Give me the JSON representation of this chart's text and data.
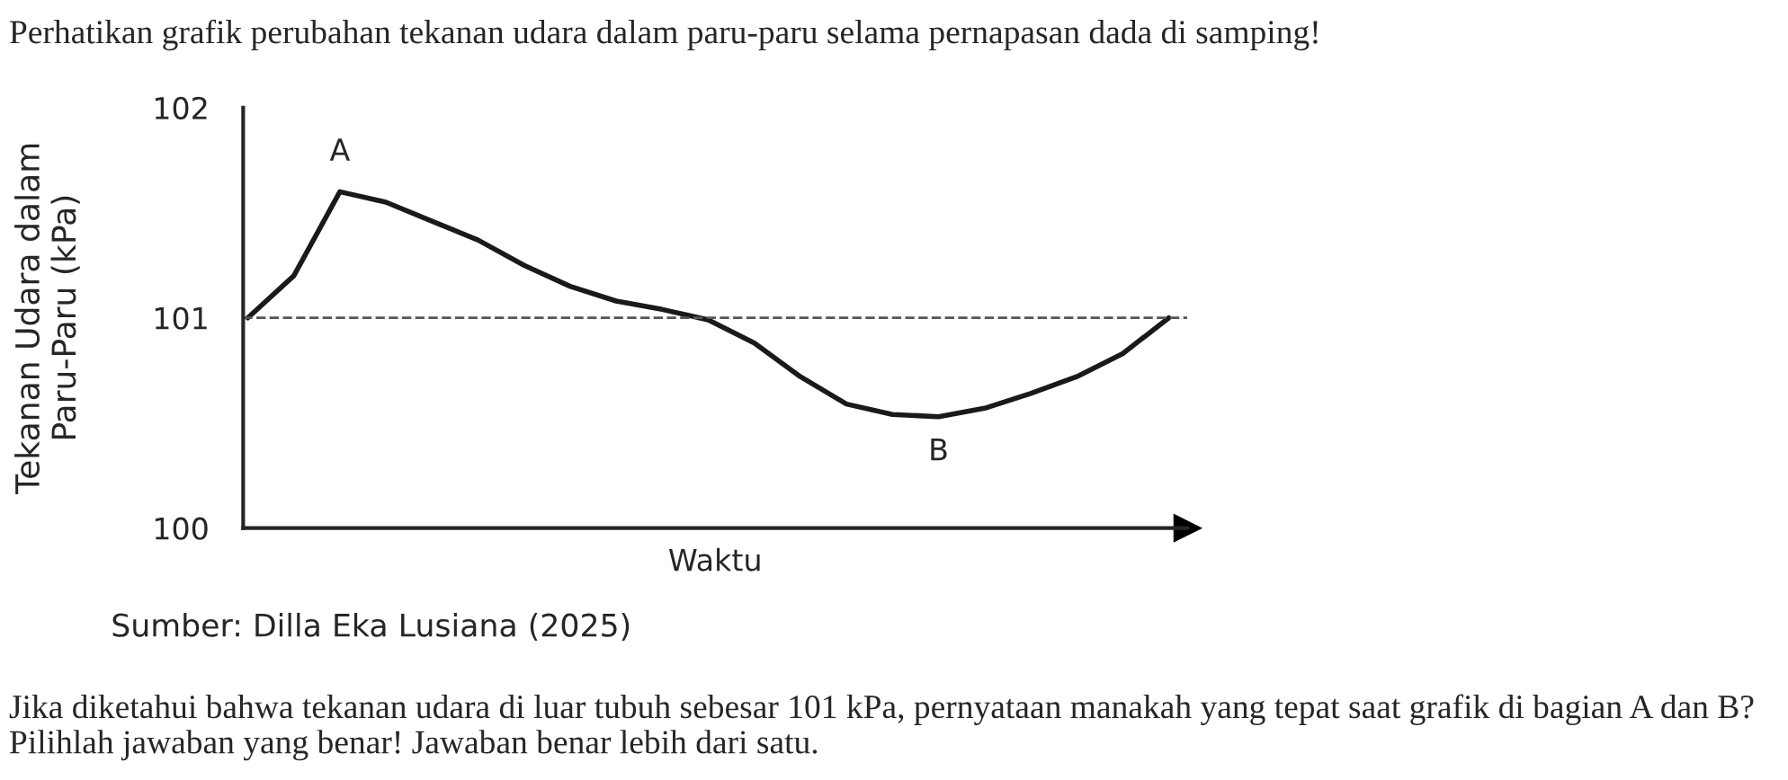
{
  "chart_data": {
    "type": "line",
    "title": "Perhatikan grafik perubahan tekanan udara dalam paru-paru selama pernapasan dada di samping!",
    "xlabel": "Waktu",
    "ylabel": "Tekanan Udara dalam\nParu-Paru (kPa)",
    "categories": [
      null,
      null,
      null,
      null,
      null,
      null,
      null,
      null,
      null,
      null,
      null,
      null,
      null,
      null,
      null,
      null,
      null,
      null,
      null,
      null,
      null
    ],
    "series": [
      {
        "color": "#1a1a1a",
        "values": [
          101.0,
          101.2,
          101.6,
          101.55,
          101.46,
          101.37,
          101.25,
          101.15,
          101.08,
          101.04,
          100.99,
          100.88,
          100.72,
          100.59,
          100.54,
          100.53,
          100.57,
          100.64,
          100.72,
          100.83,
          101.0
        ]
      }
    ],
    "ylim": [
      100,
      102
    ],
    "yticks": [
      100,
      101,
      102
    ],
    "grid": false,
    "marker": "none",
    "line_style": "solid",
    "tick_labels": "y",
    "ref_lines": [
      {
        "axis": "y",
        "value": 101,
        "color": "#555555",
        "line_style": "dashed"
      }
    ],
    "annotations": [
      {
        "text": "A",
        "y": 101.6
      },
      {
        "text": "B",
        "y": 100.53
      },
      "Sumber: Dilla Eka Lusiana (2025)",
      "Jika diketahui bahwa tekanan udara di luar tubuh sebesar 101 kPa, pernyataan manakah yang tepat saat grafik di bagian A dan B? Pilihlah jawaban yang benar! Jawaban benar lebih dari satu."
    ]
  }
}
